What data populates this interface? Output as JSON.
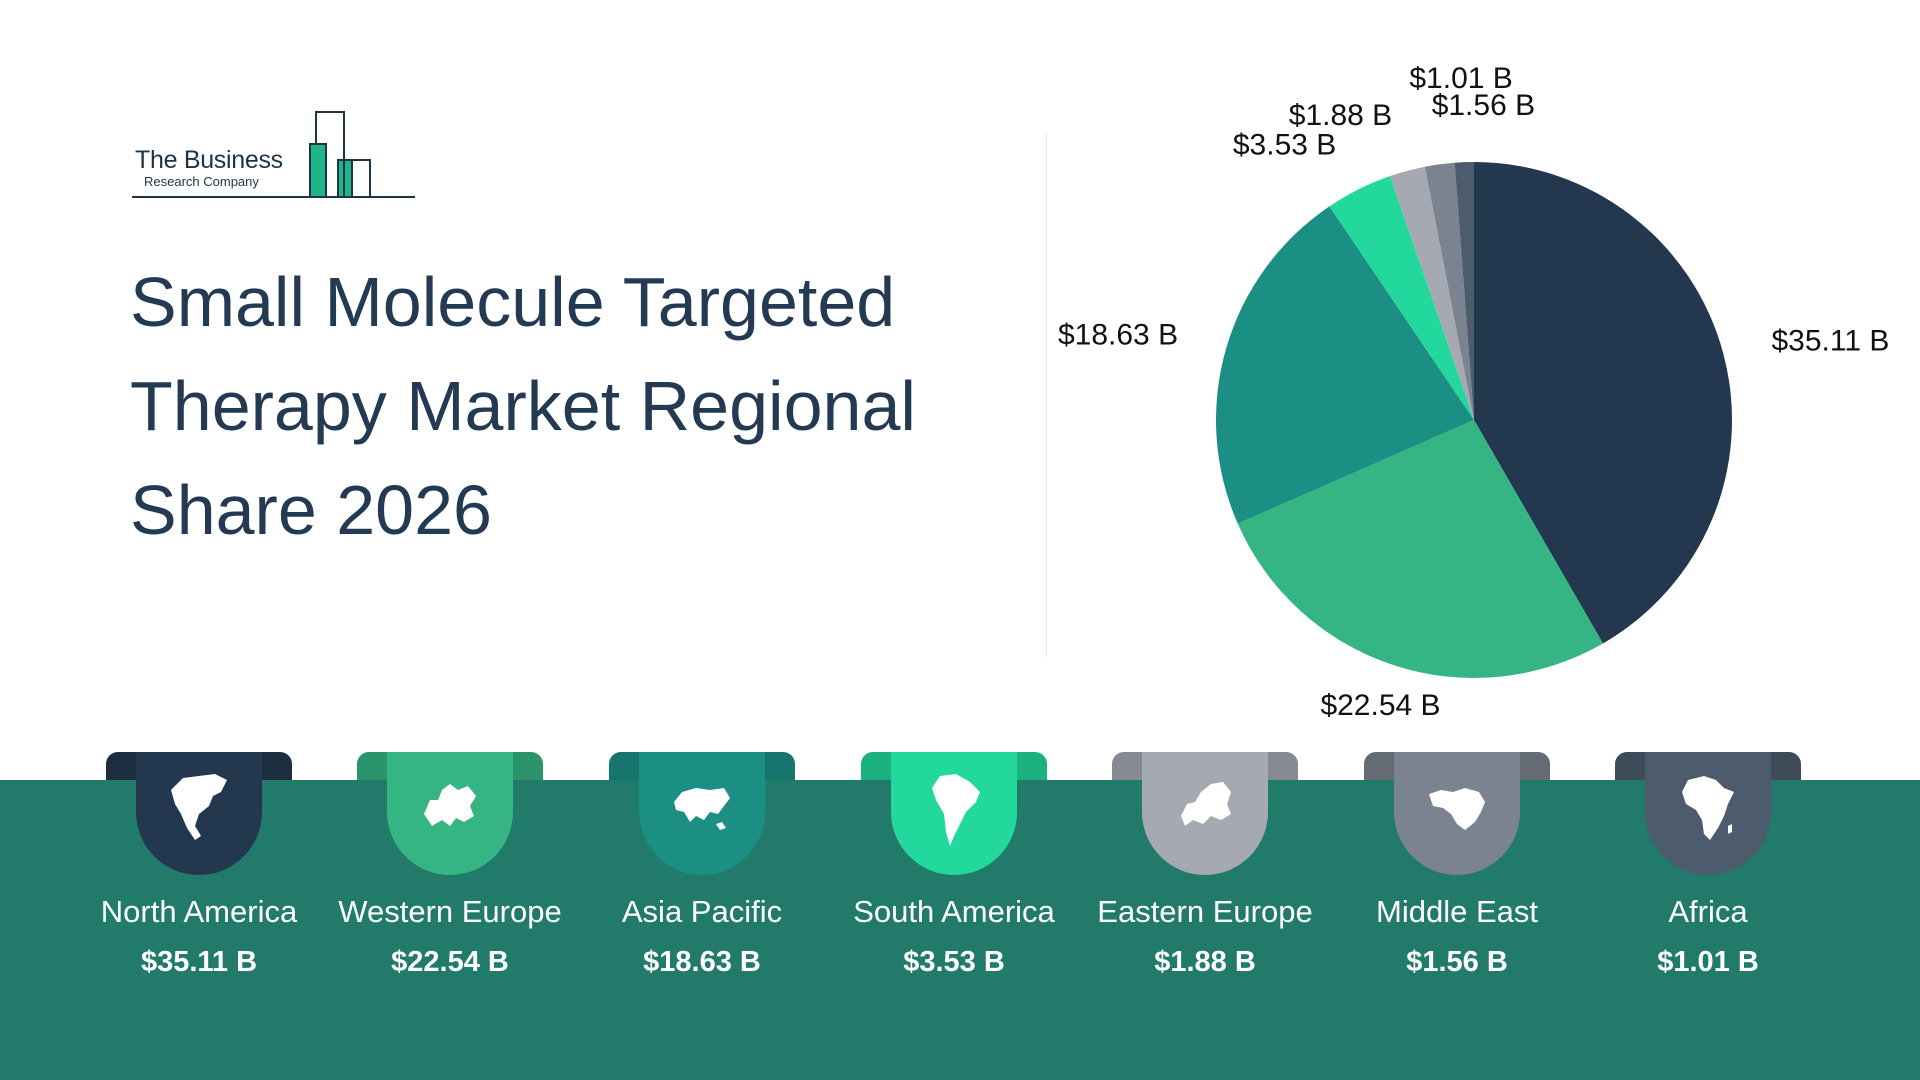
{
  "brand": {
    "name_line1": "The Business",
    "name_line2": "Research Company",
    "accent_color": "#1fb58a",
    "ink_color": "#1f3347"
  },
  "title": "Small Molecule Targeted Therapy Market Regional Share 2026",
  "chart_data": {
    "type": "pie",
    "title": "Small Molecule Targeted Therapy Market Regional Share 2026",
    "unit": "B",
    "categories": [
      "North America",
      "Western Europe",
      "Asia Pacific",
      "South America",
      "Eastern Europe",
      "Middle East",
      "Africa"
    ],
    "values": [
      35.11,
      22.54,
      18.63,
      3.53,
      1.88,
      1.56,
      1.01
    ],
    "labels": [
      "$35.11 B",
      "$22.54 B",
      "$18.63 B",
      "$3.53 B",
      "$1.88 B",
      "$1.56 B",
      "$1.01 B"
    ],
    "colors": [
      "#23384e",
      "#35b584",
      "#1b8f84",
      "#22d89c",
      "#a4a9b2",
      "#7a838f",
      "#4c5c6c"
    ],
    "start": "12 o'clock",
    "direction": "clockwise",
    "legend": "none"
  },
  "regions": [
    {
      "name": "North America",
      "value": "$35.11 B",
      "color": "#23384e",
      "icon": "north-america-map-icon"
    },
    {
      "name": "Western Europe",
      "value": "$22.54 B",
      "color": "#35b584",
      "icon": "western-europe-map-icon"
    },
    {
      "name": "Asia Pacific",
      "value": "$18.63 B",
      "color": "#1b8f84",
      "icon": "asia-pacific-map-icon"
    },
    {
      "name": "South America",
      "value": "$3.53 B",
      "color": "#22d89c",
      "icon": "south-america-map-icon"
    },
    {
      "name": "Eastern Europe",
      "value": "$1.88 B",
      "color": "#a4a9b2",
      "icon": "eastern-europe-map-icon"
    },
    {
      "name": "Middle East",
      "value": "$1.56 B",
      "color": "#7a838f",
      "icon": "middle-east-map-icon"
    },
    {
      "name": "Africa",
      "value": "$1.01 B",
      "color": "#4c5c6c",
      "icon": "africa-map-icon"
    }
  ],
  "band_color": "#217a6a"
}
